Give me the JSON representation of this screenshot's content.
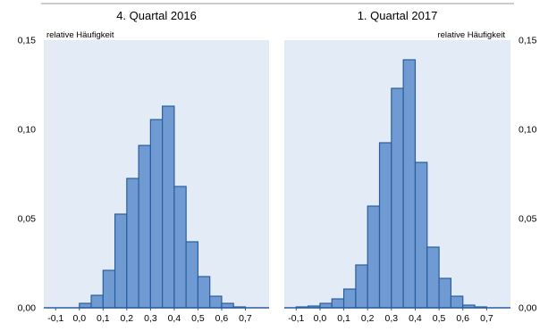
{
  "chart_data": [
    {
      "type": "bar",
      "title": "4. Quartal 2016",
      "ylabel": "relative Häufigkeit",
      "ylabel_position": "top-left",
      "y_ticks_side": "left",
      "xlim": [
        -0.15,
        0.8
      ],
      "ylim": [
        0,
        0.15
      ],
      "x_ticks": [
        -0.1,
        0.0,
        0.1,
        0.2,
        0.3,
        0.4,
        0.5,
        0.6,
        0.7
      ],
      "x_tick_labels": [
        "-0,1",
        "0,0",
        "0,1",
        "0,2",
        "0,3",
        "0,4",
        "0,5",
        "0,6",
        "0,7"
      ],
      "y_ticks": [
        0,
        0.05,
        0.1,
        0.15
      ],
      "y_tick_labels": [
        "0,00",
        "0,05",
        "0,10",
        "0,15"
      ],
      "bin_width": 0.05,
      "bin_starts": [
        -0.15,
        -0.1,
        -0.05,
        0.0,
        0.05,
        0.1,
        0.15,
        0.2,
        0.25,
        0.3,
        0.35,
        0.4,
        0.45,
        0.5,
        0.55,
        0.6,
        0.65,
        0.7,
        0.75
      ],
      "values": [
        0.0,
        0.0,
        0.0,
        0.0025,
        0.007,
        0.021,
        0.0525,
        0.0725,
        0.091,
        0.1055,
        0.113,
        0.068,
        0.037,
        0.0175,
        0.0065,
        0.0025,
        0.0005,
        0.0,
        0.0
      ],
      "grid": false,
      "colors": {
        "background": "#e3ebf7",
        "bar_fill": "#6f9ad2",
        "bar_edge": "#2a5d9e",
        "axis": "#2a5d9e"
      }
    },
    {
      "type": "bar",
      "title": "1. Quartal 2017",
      "ylabel": "relative Häufigkeit",
      "ylabel_position": "top-right",
      "y_ticks_side": "right",
      "xlim": [
        -0.15,
        0.8
      ],
      "ylim": [
        0,
        0.15
      ],
      "x_ticks": [
        -0.1,
        0.0,
        0.1,
        0.2,
        0.3,
        0.4,
        0.5,
        0.6,
        0.7
      ],
      "x_tick_labels": [
        "-0,1",
        "0,0",
        "0,1",
        "0,2",
        "0,3",
        "0,4",
        "0,5",
        "0,6",
        "0,7"
      ],
      "y_ticks": [
        0,
        0.05,
        0.1,
        0.15
      ],
      "y_tick_labels": [
        "0,00",
        "0,05",
        "0,10",
        "0,15"
      ],
      "bin_width": 0.05,
      "bin_starts": [
        -0.15,
        -0.1,
        -0.05,
        0.0,
        0.05,
        0.1,
        0.15,
        0.2,
        0.25,
        0.3,
        0.35,
        0.4,
        0.45,
        0.5,
        0.55,
        0.6,
        0.65,
        0.7,
        0.75
      ],
      "values": [
        0.0,
        0.0005,
        0.001,
        0.0025,
        0.005,
        0.0105,
        0.024,
        0.057,
        0.0925,
        0.123,
        0.139,
        0.0815,
        0.034,
        0.0165,
        0.0065,
        0.0015,
        0.0005,
        0.0,
        0.0
      ],
      "grid": false,
      "colors": {
        "background": "#e3ebf7",
        "bar_fill": "#6f9ad2",
        "bar_edge": "#2a5d9e",
        "axis": "#2a5d9e"
      }
    }
  ]
}
